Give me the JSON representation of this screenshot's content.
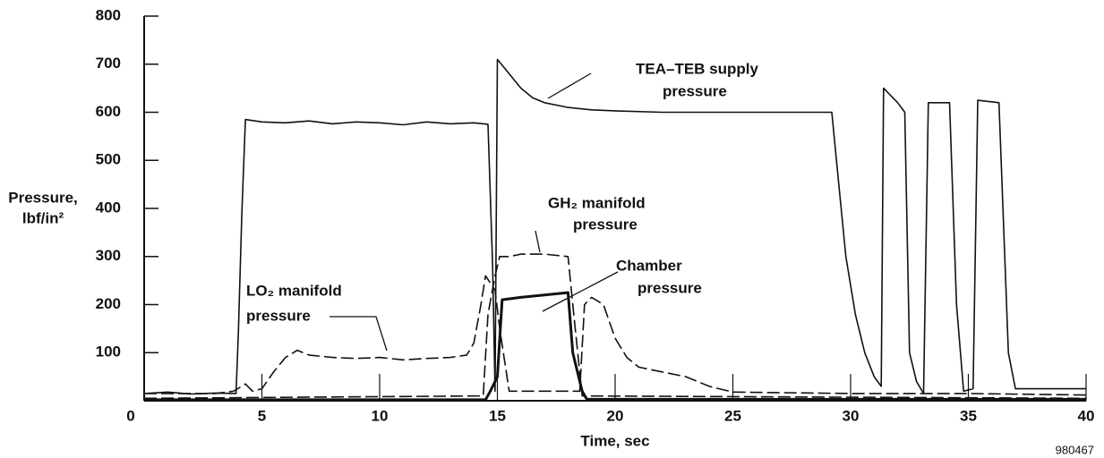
{
  "chart_data": {
    "type": "line",
    "xlabel": "Time, sec",
    "ylabel": [
      "Pressure,",
      "lbf/in²"
    ],
    "figure_number": "980467",
    "origin_label": "0",
    "xlim": [
      0,
      40
    ],
    "ylim": [
      0,
      800
    ],
    "xticks": [
      5,
      10,
      15,
      20,
      25,
      30,
      35,
      40
    ],
    "yticks": [
      100,
      200,
      300,
      400,
      500,
      600,
      700,
      800
    ],
    "annotations": [
      [
        "TEA–TEB supply",
        "pressure"
      ],
      [
        "GH₂ manifold",
        "pressure"
      ],
      [
        "Chamber",
        "pressure"
      ],
      [
        "LO₂ manifold",
        "pressure"
      ]
    ],
    "series": [
      {
        "color": "#111",
        "dash": false,
        "linewidth": 1.6,
        "x": [
          0,
          1,
          2,
          3,
          3.9,
          4.0,
          4.15,
          4.3,
          5,
          6,
          7,
          8,
          9,
          10,
          11,
          12,
          13,
          14,
          14.6,
          14.8,
          14.9,
          15.0,
          15.5,
          16,
          16.5,
          17,
          18,
          19,
          20,
          22,
          25,
          29.2,
          29.4,
          29.8,
          30.2,
          30.6,
          31.0,
          31.3,
          31.4,
          31.6,
          32.0,
          32.3,
          32.5,
          32.8,
          33.1,
          33.3,
          34.2,
          34.5,
          34.8,
          35.2,
          35.4,
          36.3,
          36.7,
          37.0,
          40
        ],
        "values": [
          15,
          18,
          14,
          16,
          15,
          140,
          390,
          585,
          580,
          578,
          582,
          576,
          580,
          578,
          574,
          580,
          576,
          578,
          575,
          280,
          20,
          710,
          680,
          650,
          630,
          620,
          610,
          605,
          603,
          600,
          600,
          600,
          500,
          300,
          180,
          100,
          50,
          30,
          650,
          640,
          620,
          600,
          100,
          40,
          15,
          620,
          620,
          200,
          20,
          25,
          625,
          620,
          100,
          25,
          25
        ]
      },
      {
        "color": "#111",
        "dash": true,
        "linewidth": 1.6,
        "x": [
          0,
          1,
          3,
          3.8,
          4.3,
          4.6,
          5,
          5.5,
          6,
          6.5,
          7,
          8,
          9,
          10,
          11,
          12,
          13,
          13.7,
          14.0,
          14.3,
          14.5,
          14.9,
          15.1,
          15.5,
          18.5,
          18.7,
          19,
          19.5,
          20,
          20.5,
          21,
          22,
          23,
          24,
          25,
          30,
          35,
          40
        ],
        "values": [
          15,
          15,
          15,
          20,
          35,
          20,
          25,
          60,
          90,
          105,
          95,
          90,
          88,
          90,
          85,
          88,
          90,
          95,
          120,
          200,
          260,
          230,
          150,
          20,
          20,
          200,
          215,
          200,
          130,
          90,
          70,
          60,
          50,
          30,
          18,
          15,
          15,
          12
        ]
      },
      {
        "color": "#111",
        "dash": true,
        "linewidth": 1.6,
        "x": [
          0,
          14.4,
          14.6,
          14.9,
          15.1,
          15.5,
          16,
          17,
          18,
          18.2,
          18.6,
          40
        ],
        "values": [
          5,
          10,
          180,
          260,
          300,
          300,
          305,
          305,
          300,
          200,
          10,
          5
        ]
      },
      {
        "color": "#111",
        "dash": false,
        "linewidth": 3,
        "x": [
          0,
          14.5,
          14.7,
          15.0,
          15.2,
          16,
          17,
          18,
          18.2,
          18.6,
          18.8,
          40
        ],
        "values": [
          2,
          2,
          20,
          50,
          210,
          215,
          220,
          225,
          100,
          20,
          3,
          3
        ]
      }
    ]
  }
}
